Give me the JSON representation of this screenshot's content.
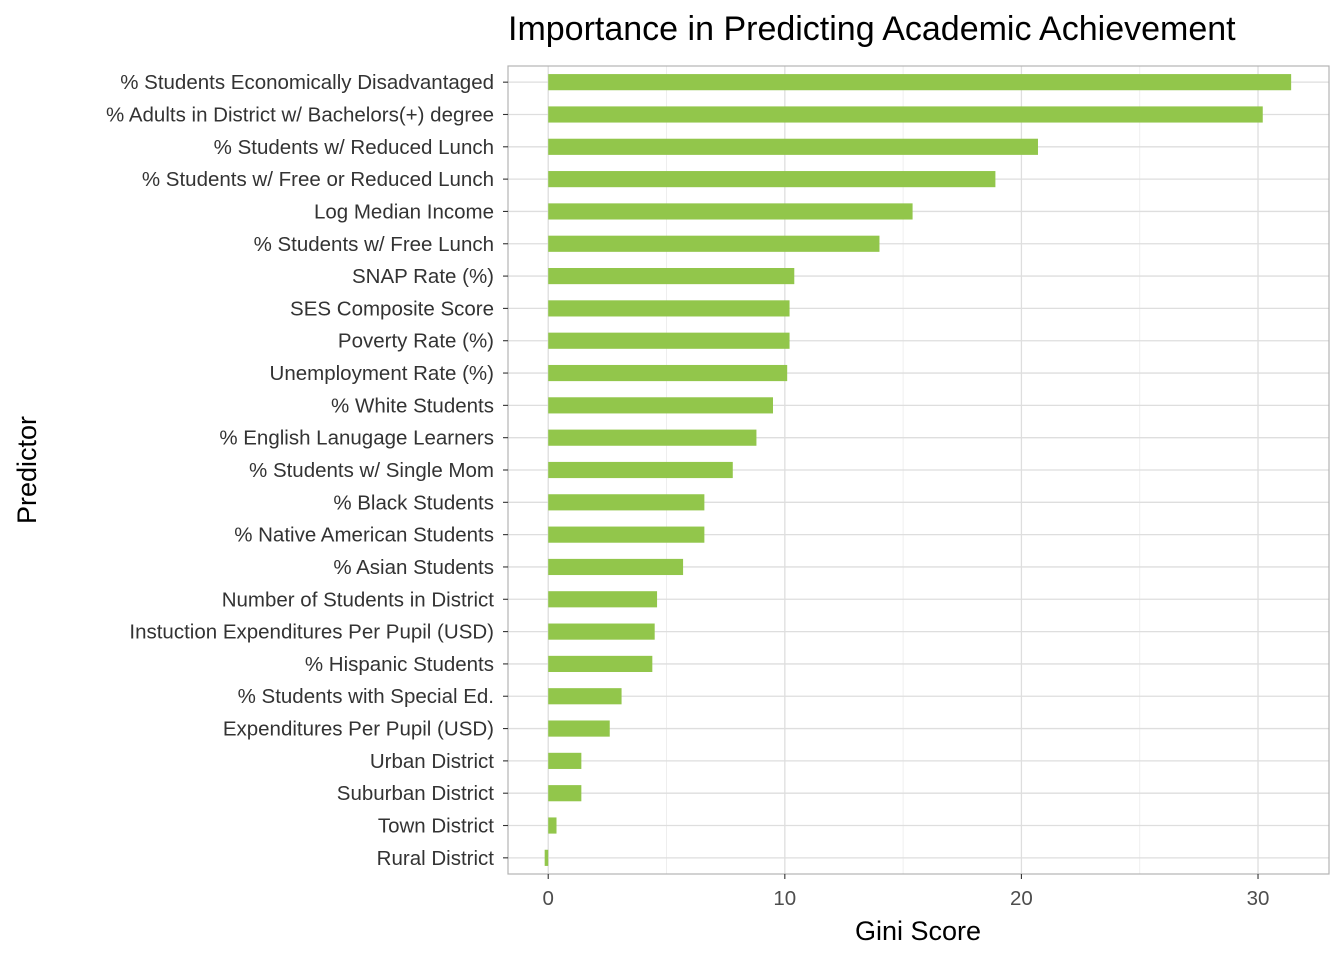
{
  "chart_data": {
    "type": "bar",
    "orientation": "horizontal",
    "title": "Importance in Predicting Academic Achievement",
    "xlabel": "Gini Score",
    "ylabel": "Predictor",
    "xlim": [
      -1.7,
      33.0
    ],
    "xticks": [
      0,
      10,
      20,
      30
    ],
    "grid": true,
    "bar_color": "#92c64b",
    "categories": [
      "% Students Economically Disadvantaged",
      "% Adults in District w/ Bachelors(+) degree",
      "% Students w/ Reduced Lunch",
      "% Students w/ Free or Reduced Lunch",
      "Log  Median Income",
      "% Students w/ Free Lunch",
      "SNAP Rate (%)",
      "SES Composite Score",
      "Poverty Rate (%)",
      "Unemployment Rate (%)",
      "% White Students",
      "% English Lanugage Learners",
      "% Students w/ Single Mom",
      "% Black Students",
      "% Native American Students",
      "% Asian Students",
      "Number of Students in District",
      "Instuction Expenditures Per Pupil (USD)",
      "% Hispanic Students",
      "% Students with Special Ed.",
      "Expenditures Per Pupil (USD)",
      "Urban District",
      "Suburban District",
      "Town District",
      "Rural District"
    ],
    "values": [
      31.4,
      30.2,
      20.7,
      18.9,
      15.4,
      14.0,
      10.4,
      10.2,
      10.2,
      10.1,
      9.5,
      8.8,
      7.8,
      6.6,
      6.6,
      5.7,
      4.6,
      4.5,
      4.4,
      3.1,
      2.6,
      1.4,
      1.4,
      0.35,
      -0.15
    ]
  }
}
